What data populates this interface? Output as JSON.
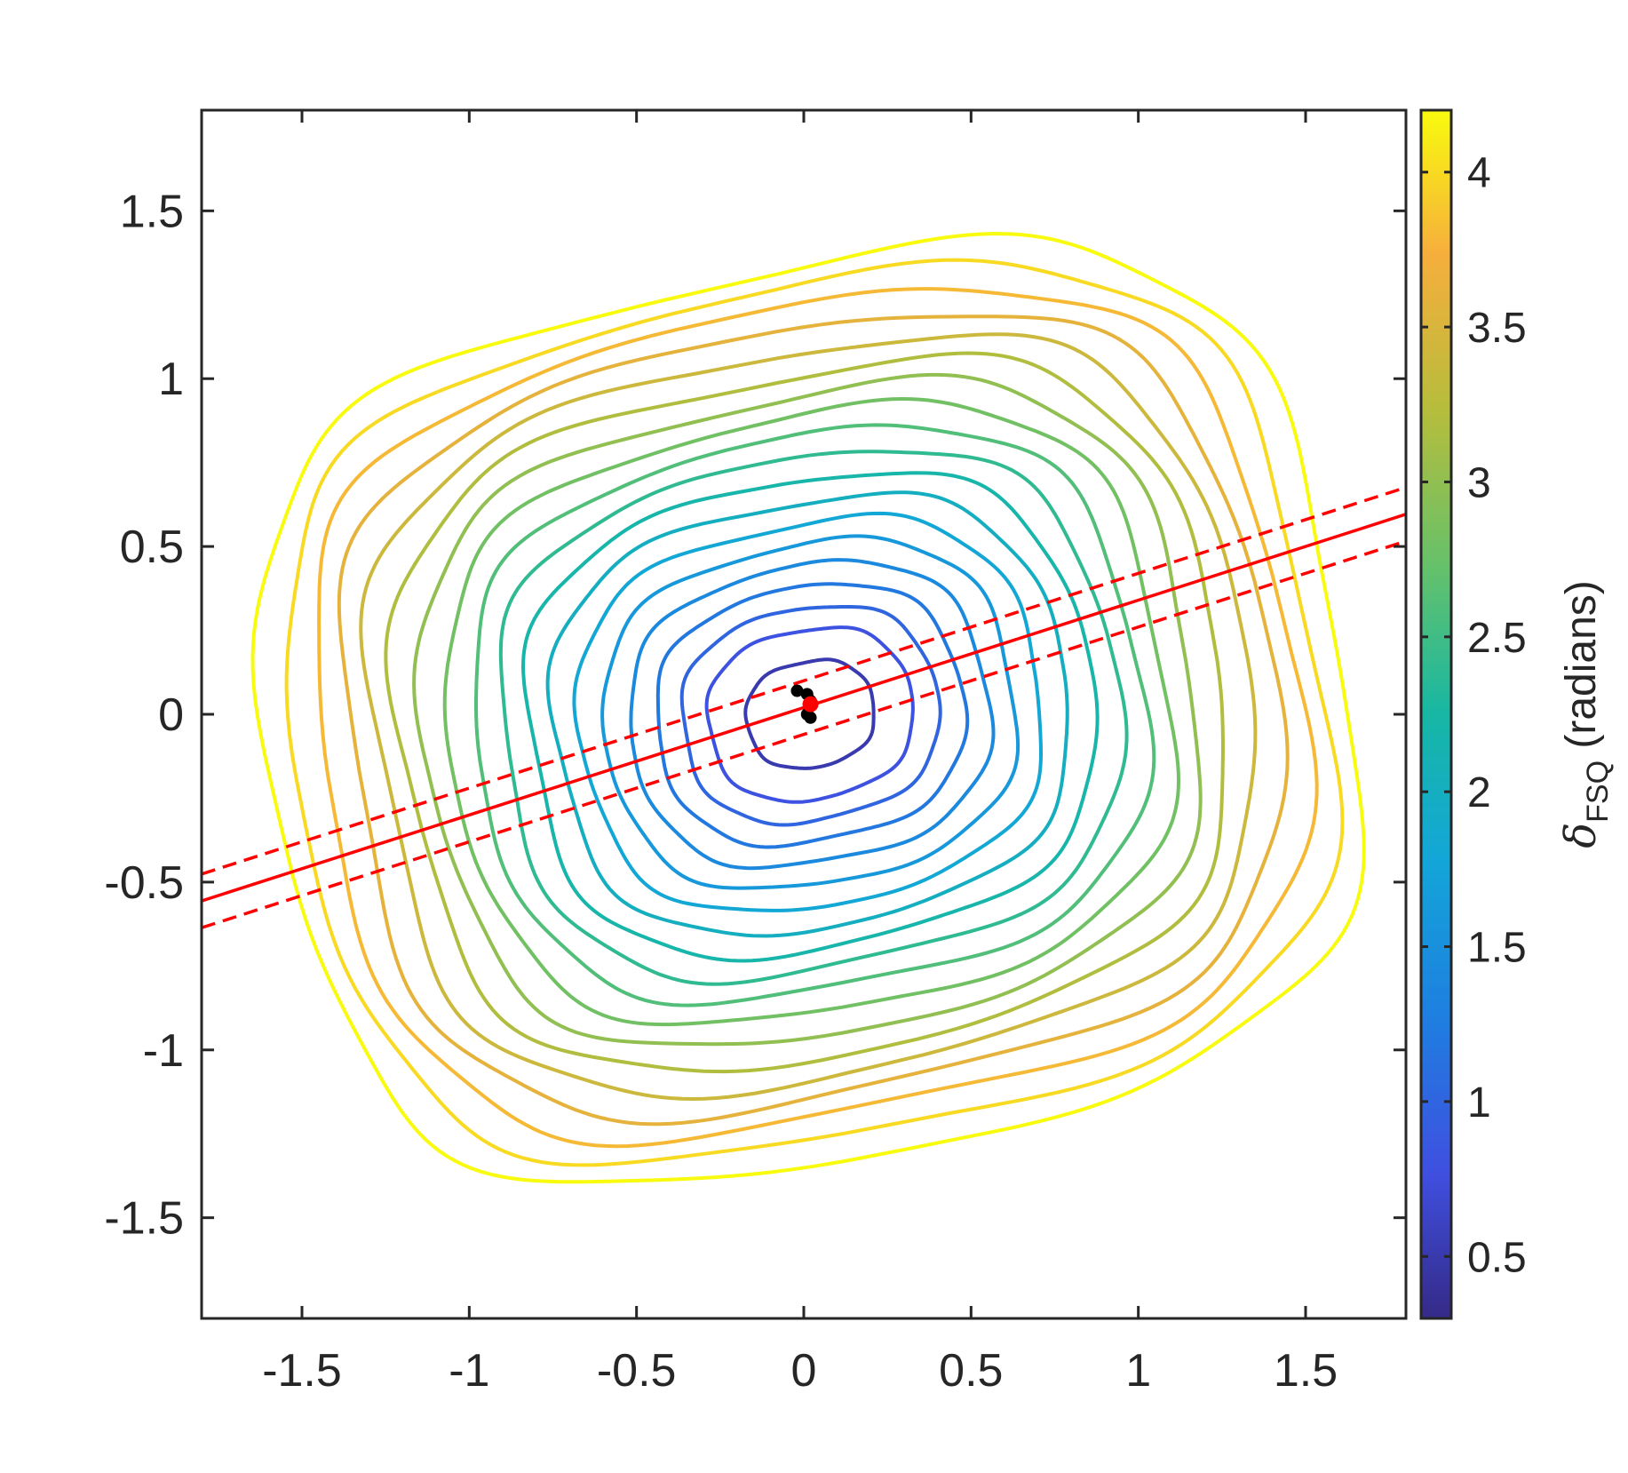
{
  "chart_data": {
    "type": "contour",
    "title": "",
    "xlabel": "",
    "ylabel": "",
    "xlim": [
      -1.8,
      1.8
    ],
    "ylim": [
      -1.8,
      1.8
    ],
    "xticks": [
      -1.5,
      -1,
      -0.5,
      0,
      0.5,
      1,
      1.5
    ],
    "xtick_labels": [
      "-1.5",
      "-1",
      "-0.5",
      "0",
      "0.5",
      "1",
      "1.5"
    ],
    "yticks": [
      -1.5,
      -1,
      -0.5,
      0,
      0.5,
      1,
      1.5
    ],
    "ytick_labels": [
      "-1.5",
      "-1",
      "-0.5",
      "0",
      "0.5",
      "1",
      "1.5"
    ],
    "grid": false,
    "contour": {
      "center": [
        0.02,
        0.0
      ],
      "levels": [
        0.5,
        0.8,
        1.0,
        1.2,
        1.4,
        1.6,
        1.8,
        2.0,
        2.2,
        2.4,
        2.6,
        2.8,
        3.0,
        3.2,
        3.4,
        3.6,
        3.8,
        4.0,
        4.2
      ],
      "colormap": "parula",
      "rotation_deg": 12,
      "description_of_shape": "nested, slightly tilted, squarish loops around the center; outer levels clipped by axes"
    },
    "colorbar": {
      "label_symbol": "δ",
      "label_subscript": "FSQ",
      "label_suffix": " (radians)",
      "range": [
        0.3,
        4.2
      ],
      "ticks": [
        0.5,
        1,
        1.5,
        2,
        2.5,
        3,
        3.5,
        4
      ],
      "tick_labels": [
        "0.5",
        "1",
        "1.5",
        "2",
        "2.5",
        "3",
        "3.5",
        "4"
      ]
    },
    "fit_line": {
      "color": "#ff0000",
      "slope": 0.32,
      "intercept": 0.02,
      "confidence_band_offset": 0.08
    },
    "points": {
      "black": [
        [
          -0.02,
          0.07
        ],
        [
          0.01,
          0.06
        ],
        [
          0.02,
          0.04
        ],
        [
          0.01,
          0.0
        ],
        [
          0.02,
          -0.01
        ]
      ],
      "red": [
        [
          0.02,
          0.03
        ]
      ]
    }
  }
}
